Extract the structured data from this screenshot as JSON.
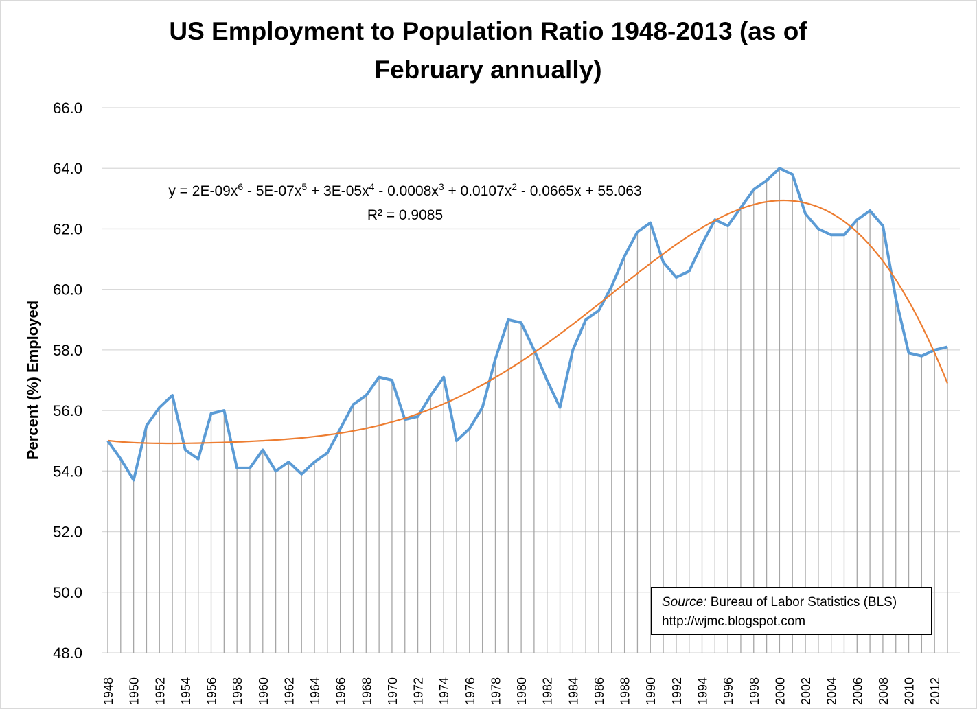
{
  "chart_data": {
    "type": "line",
    "title_line1": "US Employment to Population Ratio 1948-2013 (as of",
    "title_line2": "February annually)",
    "ylabel": "Percent (%) Employed",
    "xlabel": "",
    "ylim": [
      48,
      66
    ],
    "yticks": [
      "48.0",
      "50.0",
      "52.0",
      "54.0",
      "56.0",
      "58.0",
      "60.0",
      "62.0",
      "64.0",
      "66.0"
    ],
    "grid": true,
    "x": [
      1948,
      1949,
      1950,
      1951,
      1952,
      1953,
      1954,
      1955,
      1956,
      1957,
      1958,
      1959,
      1960,
      1961,
      1962,
      1963,
      1964,
      1965,
      1966,
      1967,
      1968,
      1969,
      1970,
      1971,
      1972,
      1973,
      1974,
      1975,
      1976,
      1977,
      1978,
      1979,
      1980,
      1981,
      1982,
      1983,
      1984,
      1985,
      1986,
      1987,
      1988,
      1989,
      1990,
      1991,
      1992,
      1993,
      1994,
      1995,
      1996,
      1997,
      1998,
      1999,
      2000,
      2001,
      2002,
      2003,
      2004,
      2005,
      2006,
      2007,
      2008,
      2009,
      2010,
      2011,
      2012,
      2013
    ],
    "values": [
      55.0,
      54.4,
      53.7,
      55.5,
      56.1,
      56.5,
      54.7,
      54.4,
      55.9,
      56.0,
      54.1,
      54.1,
      54.7,
      54.0,
      54.3,
      53.9,
      54.3,
      54.6,
      55.4,
      56.2,
      56.5,
      57.1,
      57.0,
      55.7,
      55.8,
      56.5,
      57.1,
      55.0,
      55.4,
      56.1,
      57.7,
      59.0,
      58.9,
      58.0,
      57.0,
      56.1,
      58.0,
      59.0,
      59.3,
      60.1,
      61.1,
      61.9,
      62.2,
      60.9,
      60.4,
      60.6,
      61.5,
      62.3,
      62.1,
      62.7,
      63.3,
      63.6,
      64.0,
      63.8,
      62.5,
      62.0,
      61.8,
      61.8,
      62.3,
      62.6,
      62.1,
      59.7,
      57.9,
      57.8,
      58.0,
      58.1
    ],
    "series_color": "#5b9bd5",
    "trendline": {
      "type": "polynomial-6",
      "color": "#ed7d31",
      "equation_parts": [
        "y = 2E-09x",
        "6",
        " - 5E-07x",
        "5",
        " + 3E-05x",
        "4",
        " - 0.0008x",
        "3",
        " + 0.0107x",
        "2",
        " - 0.0665x + 55.063"
      ],
      "r_squared": "R² = 0.9085"
    },
    "drop_lines": true,
    "annotation": {
      "source_label": "Source:",
      "source_text": " Bureau of Labor Statistics (BLS)",
      "url": "http://wjmc.blogspot.com"
    }
  }
}
